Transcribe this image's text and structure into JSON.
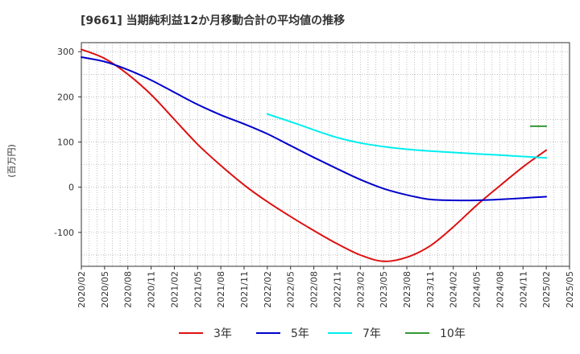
{
  "chart_data": {
    "type": "line",
    "title": "[9661]  当期純利益12か月移動合計の平均値の推移",
    "ylabel": "(百万円)",
    "xlabel": "",
    "ylim": [
      -175,
      320
    ],
    "yticks": [
      300,
      200,
      100,
      0,
      -100
    ],
    "grid": true,
    "legend_position": "bottom",
    "x_ticks": [
      "2020/02",
      "2020/05",
      "2020/08",
      "2020/11",
      "2021/02",
      "2021/05",
      "2021/08",
      "2021/11",
      "2022/02",
      "2022/05",
      "2022/08",
      "2022/11",
      "2023/02",
      "2023/05",
      "2023/08",
      "2023/11",
      "2024/02",
      "2024/05",
      "2024/08",
      "2024/11",
      "2025/02",
      "2025/05"
    ],
    "series": [
      {
        "name": "3年",
        "color": "#dd1111",
        "points": [
          [
            "2020/02",
            305
          ],
          [
            "2020/05",
            285
          ],
          [
            "2020/08",
            250
          ],
          [
            "2020/11",
            205
          ],
          [
            "2021/02",
            150
          ],
          [
            "2021/05",
            95
          ],
          [
            "2021/08",
            48
          ],
          [
            "2021/11",
            5
          ],
          [
            "2022/02",
            -32
          ],
          [
            "2022/05",
            -65
          ],
          [
            "2022/08",
            -96
          ],
          [
            "2022/11",
            -125
          ],
          [
            "2023/02",
            -150
          ],
          [
            "2023/05",
            -164
          ],
          [
            "2023/08",
            -155
          ],
          [
            "2023/11",
            -130
          ],
          [
            "2024/02",
            -88
          ],
          [
            "2024/05",
            -40
          ],
          [
            "2024/08",
            3
          ],
          [
            "2024/11",
            45
          ],
          [
            "2025/02",
            82
          ]
        ]
      },
      {
        "name": "5年",
        "color": "#0000cc",
        "points": [
          [
            "2020/02",
            288
          ],
          [
            "2020/05",
            278
          ],
          [
            "2020/08",
            260
          ],
          [
            "2020/11",
            237
          ],
          [
            "2021/02",
            210
          ],
          [
            "2021/05",
            183
          ],
          [
            "2021/08",
            160
          ],
          [
            "2021/11",
            140
          ],
          [
            "2022/02",
            118
          ],
          [
            "2022/05",
            92
          ],
          [
            "2022/08",
            66
          ],
          [
            "2022/11",
            41
          ],
          [
            "2023/02",
            17
          ],
          [
            "2023/05",
            -3
          ],
          [
            "2023/08",
            -17
          ],
          [
            "2023/11",
            -27
          ],
          [
            "2024/02",
            -29
          ],
          [
            "2024/05",
            -29
          ],
          [
            "2024/08",
            -27
          ],
          [
            "2024/11",
            -24
          ],
          [
            "2025/02",
            -21
          ]
        ]
      },
      {
        "name": "7年",
        "color": "#00eeee",
        "points": [
          [
            "2022/02",
            162
          ],
          [
            "2022/05",
            145
          ],
          [
            "2022/08",
            127
          ],
          [
            "2022/11",
            110
          ],
          [
            "2023/02",
            98
          ],
          [
            "2023/05",
            90
          ],
          [
            "2023/08",
            84
          ],
          [
            "2023/11",
            80
          ],
          [
            "2024/02",
            77
          ],
          [
            "2024/05",
            74
          ],
          [
            "2024/08",
            71
          ],
          [
            "2024/11",
            68
          ],
          [
            "2025/02",
            65
          ]
        ]
      },
      {
        "name": "10年",
        "color": "#339933",
        "points": [
          [
            "2024/12",
            135
          ],
          [
            "2025/02",
            135
          ]
        ]
      }
    ]
  }
}
